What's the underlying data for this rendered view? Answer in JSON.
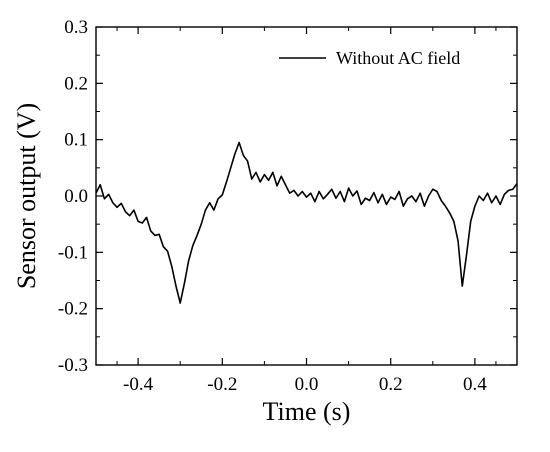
{
  "chart_data": {
    "type": "line",
    "title": "",
    "xlabel": "Time (s)",
    "ylabel": "Sensor output (V)",
    "xlim": [
      -0.5,
      0.5
    ],
    "ylim": [
      -0.3,
      0.3
    ],
    "x_ticks": [
      -0.4,
      -0.2,
      0.0,
      0.2,
      0.4
    ],
    "x_tick_labels": [
      "-0.4",
      "-0.2",
      "0.0",
      "0.2",
      "0.4"
    ],
    "y_ticks": [
      -0.3,
      -0.2,
      -0.1,
      0.0,
      0.1,
      0.2,
      0.3
    ],
    "y_tick_labels": [
      "-0.3",
      "-0.2",
      "-0.1",
      "0.0",
      "0.1",
      "0.2",
      "0.3"
    ],
    "grid": false,
    "legend_position": "top-right",
    "series": [
      {
        "name": "Without AC field",
        "color": "#000000",
        "x": [
          -0.5,
          -0.49,
          -0.48,
          -0.47,
          -0.46,
          -0.45,
          -0.44,
          -0.43,
          -0.42,
          -0.41,
          -0.4,
          -0.39,
          -0.38,
          -0.37,
          -0.36,
          -0.35,
          -0.34,
          -0.33,
          -0.32,
          -0.31,
          -0.3,
          -0.29,
          -0.28,
          -0.27,
          -0.26,
          -0.25,
          -0.24,
          -0.23,
          -0.22,
          -0.21,
          -0.2,
          -0.19,
          -0.18,
          -0.17,
          -0.16,
          -0.15,
          -0.14,
          -0.13,
          -0.12,
          -0.11,
          -0.1,
          -0.09,
          -0.08,
          -0.07,
          -0.06,
          -0.05,
          -0.04,
          -0.03,
          -0.02,
          -0.01,
          0.0,
          0.01,
          0.02,
          0.03,
          0.04,
          0.05,
          0.06,
          0.07,
          0.08,
          0.09,
          0.1,
          0.11,
          0.12,
          0.13,
          0.14,
          0.15,
          0.16,
          0.17,
          0.18,
          0.19,
          0.2,
          0.21,
          0.22,
          0.23,
          0.24,
          0.25,
          0.26,
          0.27,
          0.28,
          0.29,
          0.3,
          0.31,
          0.32,
          0.33,
          0.34,
          0.35,
          0.36,
          0.37,
          0.38,
          0.39,
          0.4,
          0.41,
          0.42,
          0.43,
          0.44,
          0.45,
          0.46,
          0.47,
          0.48,
          0.49,
          0.5
        ],
        "y": [
          0.005,
          0.02,
          -0.005,
          0.003,
          -0.012,
          -0.02,
          -0.013,
          -0.028,
          -0.035,
          -0.025,
          -0.045,
          -0.048,
          -0.038,
          -0.062,
          -0.07,
          -0.068,
          -0.09,
          -0.098,
          -0.125,
          -0.16,
          -0.19,
          -0.155,
          -0.115,
          -0.088,
          -0.07,
          -0.05,
          -0.025,
          -0.012,
          -0.025,
          -0.005,
          0.002,
          0.025,
          0.05,
          0.075,
          0.095,
          0.072,
          0.062,
          0.03,
          0.042,
          0.025,
          0.038,
          0.028,
          0.042,
          0.018,
          0.035,
          0.02,
          0.005,
          0.01,
          0.0,
          0.008,
          -0.002,
          0.005,
          -0.01,
          0.008,
          -0.005,
          0.003,
          0.012,
          -0.004,
          0.008,
          -0.01,
          0.014,
          0.0,
          0.009,
          -0.015,
          -0.004,
          -0.008,
          0.006,
          -0.012,
          0.003,
          -0.015,
          -0.002,
          -0.006,
          0.008,
          -0.018,
          -0.005,
          0.0,
          -0.01,
          0.005,
          -0.018,
          0.0,
          0.012,
          0.008,
          -0.008,
          -0.018,
          -0.03,
          -0.045,
          -0.08,
          -0.16,
          -0.105,
          -0.045,
          -0.018,
          0.0,
          -0.008,
          0.005,
          -0.012,
          0.0,
          -0.015,
          0.003,
          0.01,
          0.012,
          0.022
        ]
      }
    ]
  }
}
